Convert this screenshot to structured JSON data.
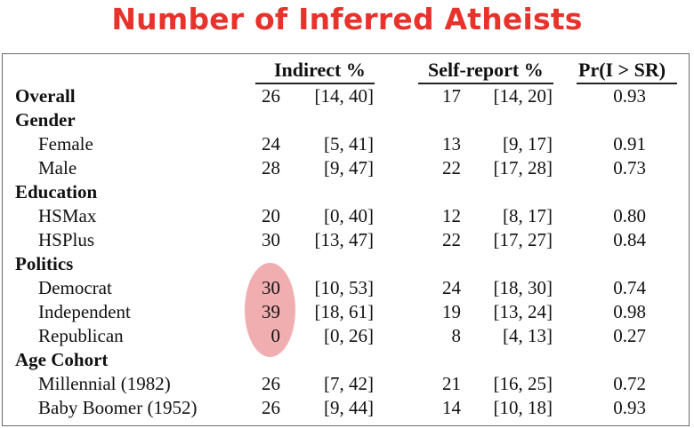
{
  "title": "Number of Inferred Atheists",
  "headers": {
    "indirect": "Indirect %",
    "self_report": "Self-report %",
    "prob": "Pr(I > SR)"
  },
  "colors": {
    "title": "#e8322c",
    "highlight": "#eea0a3"
  },
  "rows": [
    {
      "label": "Overall",
      "type": "header",
      "ind": "26",
      "ici": "[14, 40]",
      "sr": "17",
      "sci": "[14, 20]",
      "pr": "0.93"
    },
    {
      "label": "Gender",
      "type": "header"
    },
    {
      "label": "Female",
      "type": "sub",
      "ind": "24",
      "ici": "[5, 41]",
      "sr": "13",
      "sci": "[9, 17]",
      "pr": "0.91"
    },
    {
      "label": "Male",
      "type": "sub",
      "ind": "28",
      "ici": "[9, 47]",
      "sr": "22",
      "sci": "[17, 28]",
      "pr": "0.73"
    },
    {
      "label": "Education",
      "type": "header"
    },
    {
      "label": "HSMax",
      "type": "sub",
      "ind": "20",
      "ici": "[0, 40]",
      "sr": "12",
      "sci": "[8, 17]",
      "pr": "0.80"
    },
    {
      "label": "HSPlus",
      "type": "sub",
      "ind": "30",
      "ici": "[13, 47]",
      "sr": "22",
      "sci": "[17, 27]",
      "pr": "0.84"
    },
    {
      "label": "Politics",
      "type": "header"
    },
    {
      "label": "Democrat",
      "type": "sub",
      "ind": "30",
      "ici": "[10, 53]",
      "sr": "24",
      "sci": "[18, 30]",
      "pr": "0.74"
    },
    {
      "label": "Independent",
      "type": "sub",
      "ind": "39",
      "ici": "[18, 61]",
      "sr": "19",
      "sci": "[13, 24]",
      "pr": "0.98"
    },
    {
      "label": "Republican",
      "type": "sub",
      "ind": "0",
      "ici": "[0, 26]",
      "sr": "8",
      "sci": "[4, 13]",
      "pr": "0.27"
    },
    {
      "label": "Age Cohort",
      "type": "header"
    },
    {
      "label": "Millennial (1982)",
      "type": "sub",
      "ind": "26",
      "ici": "[7, 42]",
      "sr": "21",
      "sci": "[16, 25]",
      "pr": "0.72"
    },
    {
      "label": "Baby Boomer (1952)",
      "type": "sub",
      "ind": "26",
      "ici": "[9, 44]",
      "sr": "14",
      "sci": "[10, 18]",
      "pr": "0.93"
    }
  ]
}
